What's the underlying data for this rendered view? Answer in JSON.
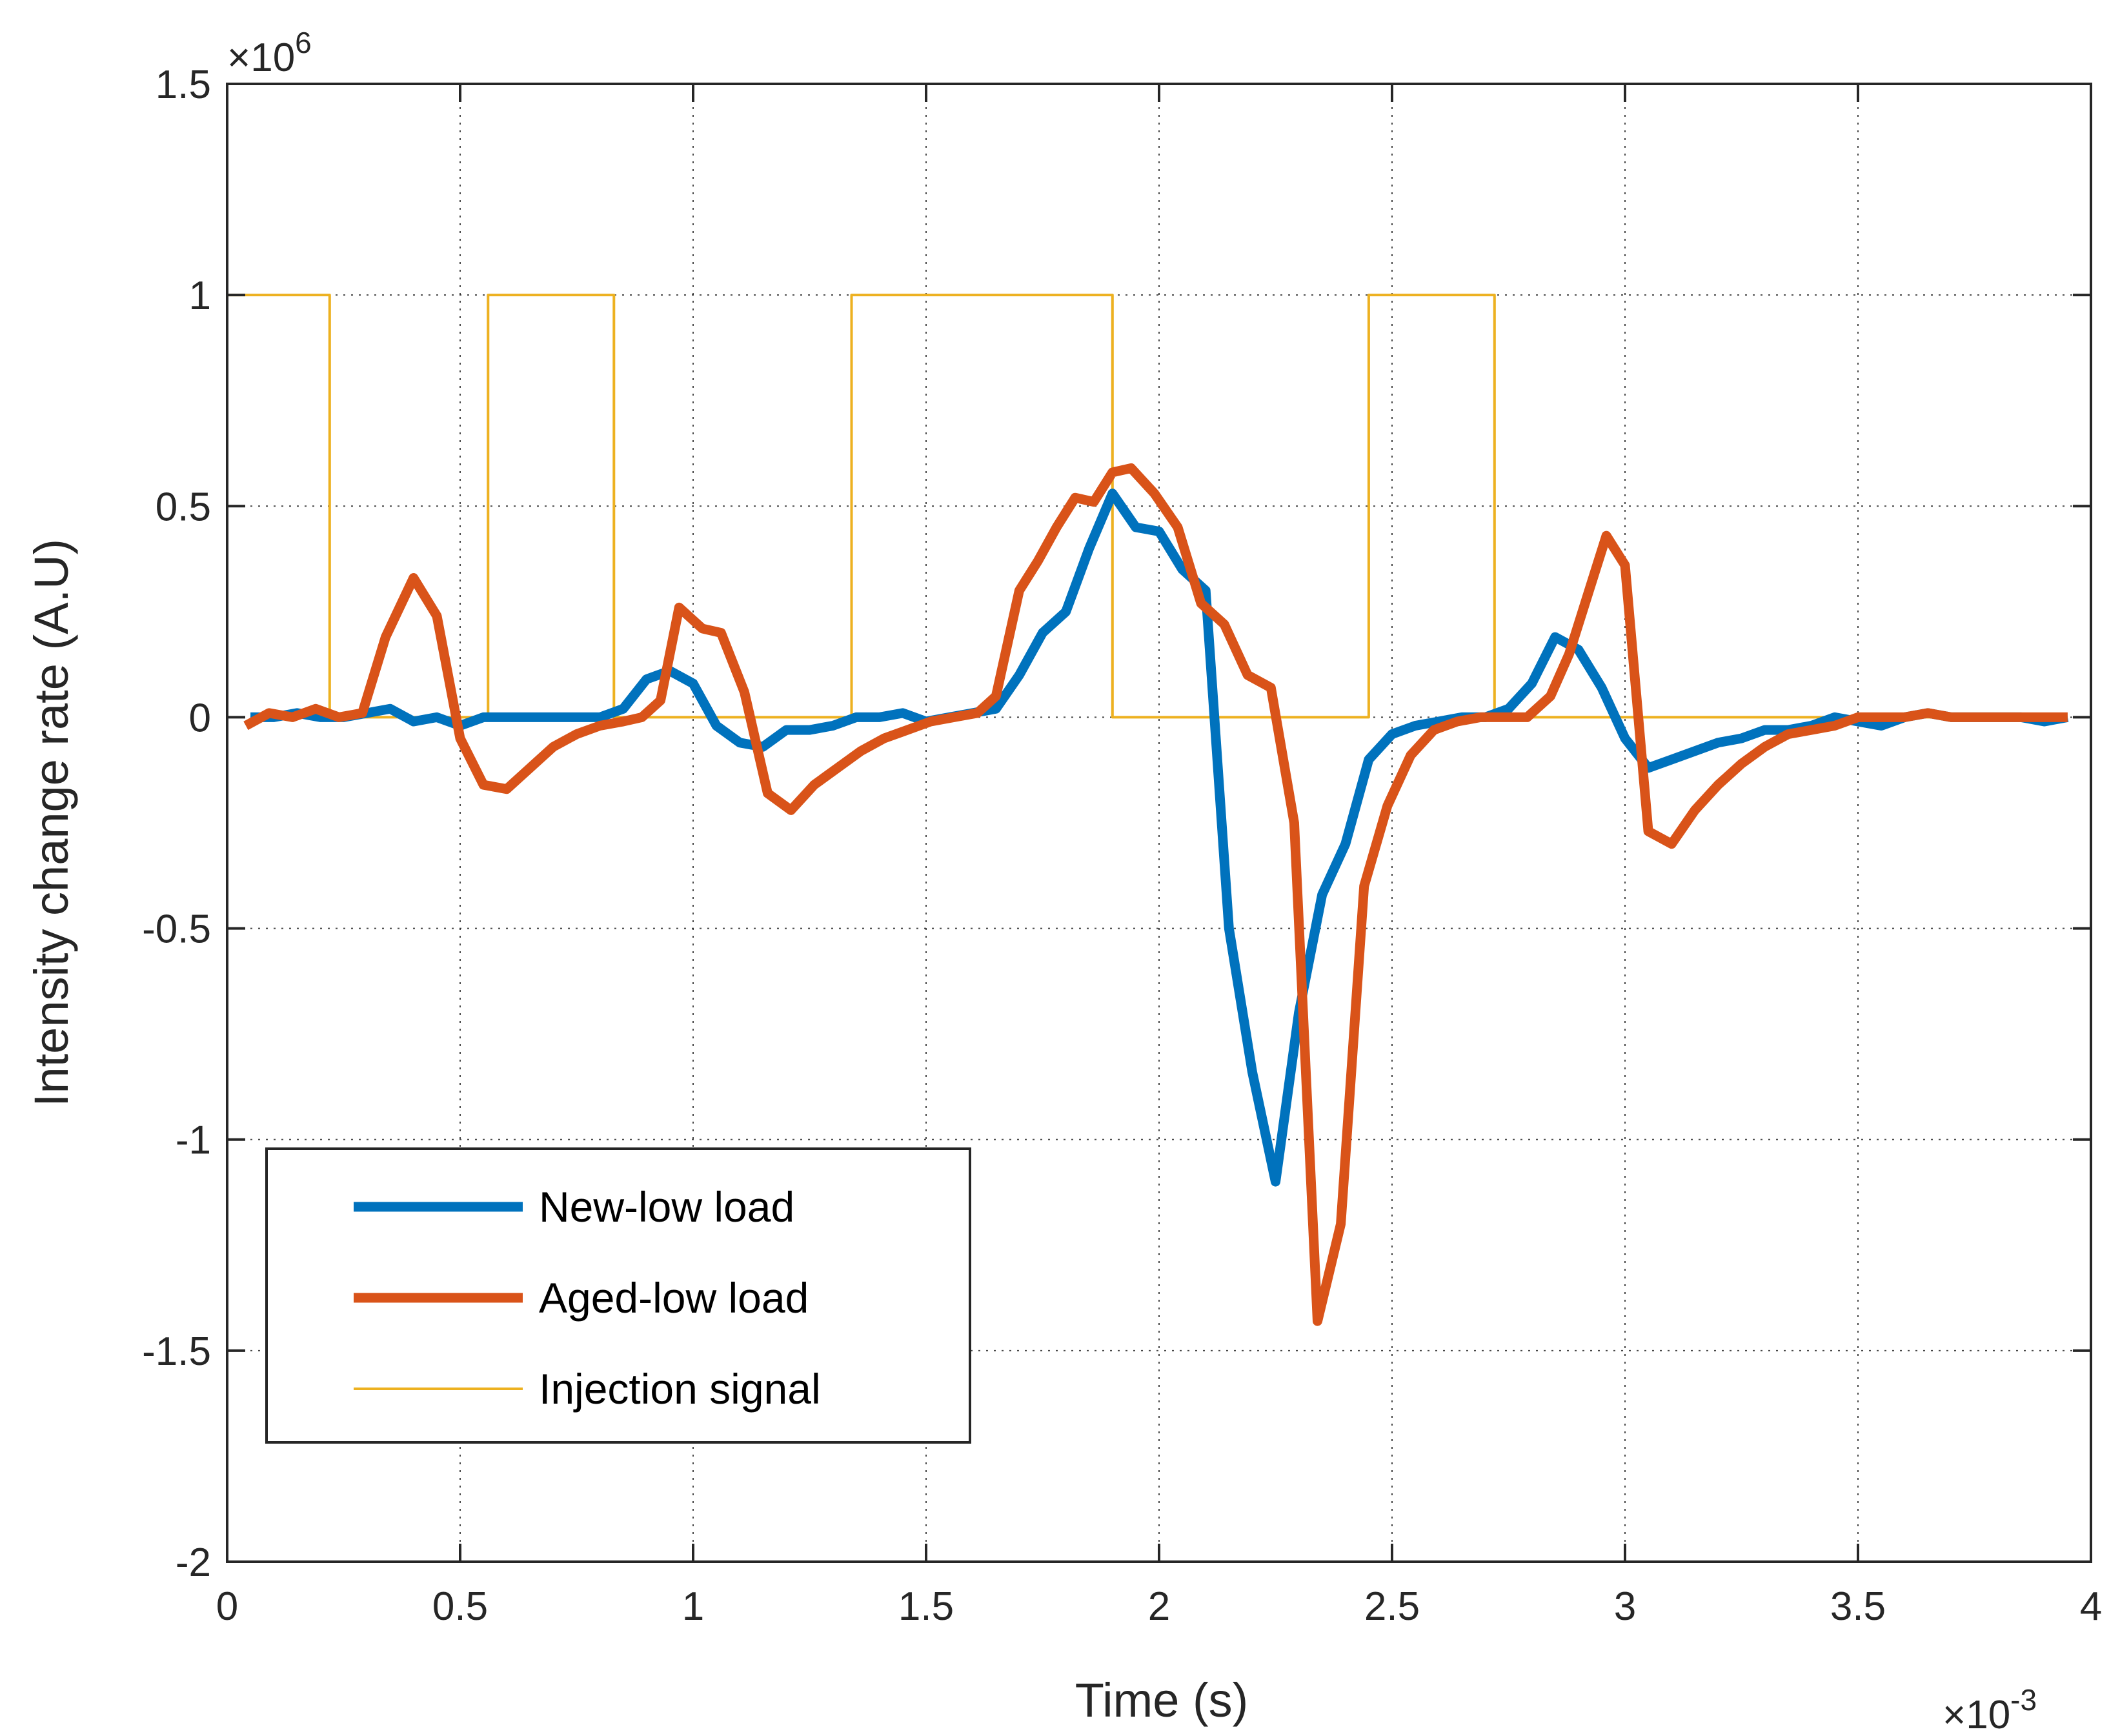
{
  "chart_data": {
    "type": "line",
    "title": "",
    "xlabel": "Time (s)",
    "ylabel": "Intensity change rate (A.U)",
    "x_multiplier": "×10",
    "x_multiplier_exp": "-3",
    "y_multiplier": "×10",
    "y_multiplier_exp": "6",
    "xlim": [
      0,
      4
    ],
    "ylim": [
      -2,
      1.5
    ],
    "xticks": [
      0,
      0.5,
      1,
      1.5,
      2,
      2.5,
      3,
      3.5,
      4
    ],
    "xtick_labels": [
      "0",
      "0.5",
      "1",
      "1.5",
      "2",
      "2.5",
      "3",
      "3.5",
      "4"
    ],
    "yticks": [
      -2,
      -1.5,
      -1,
      -0.5,
      0,
      0.5,
      1,
      1.5
    ],
    "ytick_labels": [
      "-2",
      "-1.5",
      "-1",
      "-0.5",
      "0",
      "0.5",
      "1",
      "1.5"
    ],
    "grid": true,
    "legend_position": "bottom-left",
    "series": [
      {
        "name": "New-low load",
        "color": "#0072BD",
        "style": "thick",
        "x": [
          0.05,
          0.1,
          0.15,
          0.2,
          0.25,
          0.3,
          0.35,
          0.4,
          0.45,
          0.5,
          0.55,
          0.6,
          0.65,
          0.7,
          0.75,
          0.8,
          0.85,
          0.9,
          0.95,
          1.0,
          1.05,
          1.1,
          1.15,
          1.2,
          1.25,
          1.3,
          1.35,
          1.4,
          1.45,
          1.5,
          1.55,
          1.6,
          1.65,
          1.7,
          1.75,
          1.8,
          1.85,
          1.9,
          1.95,
          2.0,
          2.05,
          2.1,
          2.15,
          2.2,
          2.25,
          2.3,
          2.35,
          2.4,
          2.45,
          2.5,
          2.55,
          2.6,
          2.65,
          2.7,
          2.75,
          2.8,
          2.85,
          2.9,
          2.95,
          3.0,
          3.05,
          3.1,
          3.15,
          3.2,
          3.25,
          3.3,
          3.35,
          3.4,
          3.45,
          3.5,
          3.55,
          3.6,
          3.65,
          3.7,
          3.75,
          3.8,
          3.85,
          3.9,
          3.95
        ],
        "y": [
          0.0,
          0.0,
          0.01,
          0.0,
          0.0,
          0.01,
          0.02,
          -0.01,
          0.0,
          -0.02,
          0.0,
          0.0,
          0.0,
          0.0,
          0.0,
          0.0,
          0.02,
          0.09,
          0.11,
          0.08,
          -0.02,
          -0.06,
          -0.07,
          -0.03,
          -0.03,
          -0.02,
          0.0,
          0.0,
          0.01,
          -0.01,
          0.0,
          0.01,
          0.02,
          0.1,
          0.2,
          0.25,
          0.4,
          0.53,
          0.45,
          0.44,
          0.35,
          0.3,
          -0.5,
          -0.84,
          -1.1,
          -0.7,
          -0.42,
          -0.3,
          -0.1,
          -0.04,
          -0.02,
          -0.01,
          0.0,
          0.0,
          0.02,
          0.08,
          0.19,
          0.16,
          0.07,
          -0.05,
          -0.12,
          -0.1,
          -0.08,
          -0.06,
          -0.05,
          -0.03,
          -0.03,
          -0.02,
          0.0,
          -0.01,
          -0.02,
          0.0,
          0.01,
          0.0,
          0.0,
          0.0,
          0.0,
          -0.01,
          0.0
        ]
      },
      {
        "name": "Aged-low load",
        "color": "#D95319",
        "style": "thick",
        "x": [
          0.04,
          0.09,
          0.14,
          0.19,
          0.24,
          0.29,
          0.34,
          0.4,
          0.45,
          0.5,
          0.55,
          0.6,
          0.65,
          0.7,
          0.75,
          0.8,
          0.85,
          0.89,
          0.93,
          0.97,
          1.02,
          1.06,
          1.11,
          1.16,
          1.21,
          1.26,
          1.31,
          1.36,
          1.41,
          1.46,
          1.51,
          1.56,
          1.61,
          1.65,
          1.7,
          1.74,
          1.78,
          1.82,
          1.86,
          1.9,
          1.94,
          1.99,
          2.04,
          2.09,
          2.14,
          2.19,
          2.24,
          2.29,
          2.34,
          2.39,
          2.44,
          2.49,
          2.54,
          2.59,
          2.64,
          2.69,
          2.74,
          2.79,
          2.84,
          2.88,
          2.92,
          2.96,
          3.0,
          3.05,
          3.1,
          3.15,
          3.2,
          3.25,
          3.3,
          3.35,
          3.4,
          3.45,
          3.5,
          3.55,
          3.6,
          3.65,
          3.7,
          3.75,
          3.8,
          3.85,
          3.9,
          3.95
        ],
        "y": [
          -0.02,
          0.01,
          0.0,
          0.02,
          0.0,
          0.01,
          0.19,
          0.33,
          0.24,
          -0.05,
          -0.16,
          -0.17,
          -0.12,
          -0.07,
          -0.04,
          -0.02,
          -0.01,
          0.0,
          0.04,
          0.26,
          0.21,
          0.2,
          0.06,
          -0.18,
          -0.22,
          -0.16,
          -0.12,
          -0.08,
          -0.05,
          -0.03,
          -0.01,
          0.0,
          0.01,
          0.05,
          0.3,
          0.37,
          0.45,
          0.52,
          0.51,
          0.58,
          0.59,
          0.53,
          0.45,
          0.27,
          0.22,
          0.1,
          0.07,
          -0.25,
          -1.43,
          -1.2,
          -0.4,
          -0.21,
          -0.09,
          -0.03,
          -0.01,
          0.0,
          0.0,
          0.0,
          0.05,
          0.15,
          0.29,
          0.43,
          0.36,
          -0.27,
          -0.3,
          -0.22,
          -0.16,
          -0.11,
          -0.07,
          -0.04,
          -0.03,
          -0.02,
          0.0,
          0.0,
          0.0,
          0.01,
          0.0,
          0.0,
          0.0,
          0.0,
          0.0,
          0.0
        ]
      },
      {
        "name": "Injection signal",
        "color": "#EDB120",
        "style": "thin",
        "x": [
          0.0,
          0.0,
          0.22,
          0.22,
          0.56,
          0.56,
          0.83,
          0.83,
          1.34,
          1.34,
          1.9,
          1.9,
          2.45,
          2.45,
          2.72,
          2.72,
          3.95
        ],
        "y": [
          0,
          1,
          1,
          0,
          0,
          1,
          1,
          0,
          0,
          1,
          1,
          0,
          0,
          1,
          1,
          0,
          0
        ]
      }
    ]
  }
}
